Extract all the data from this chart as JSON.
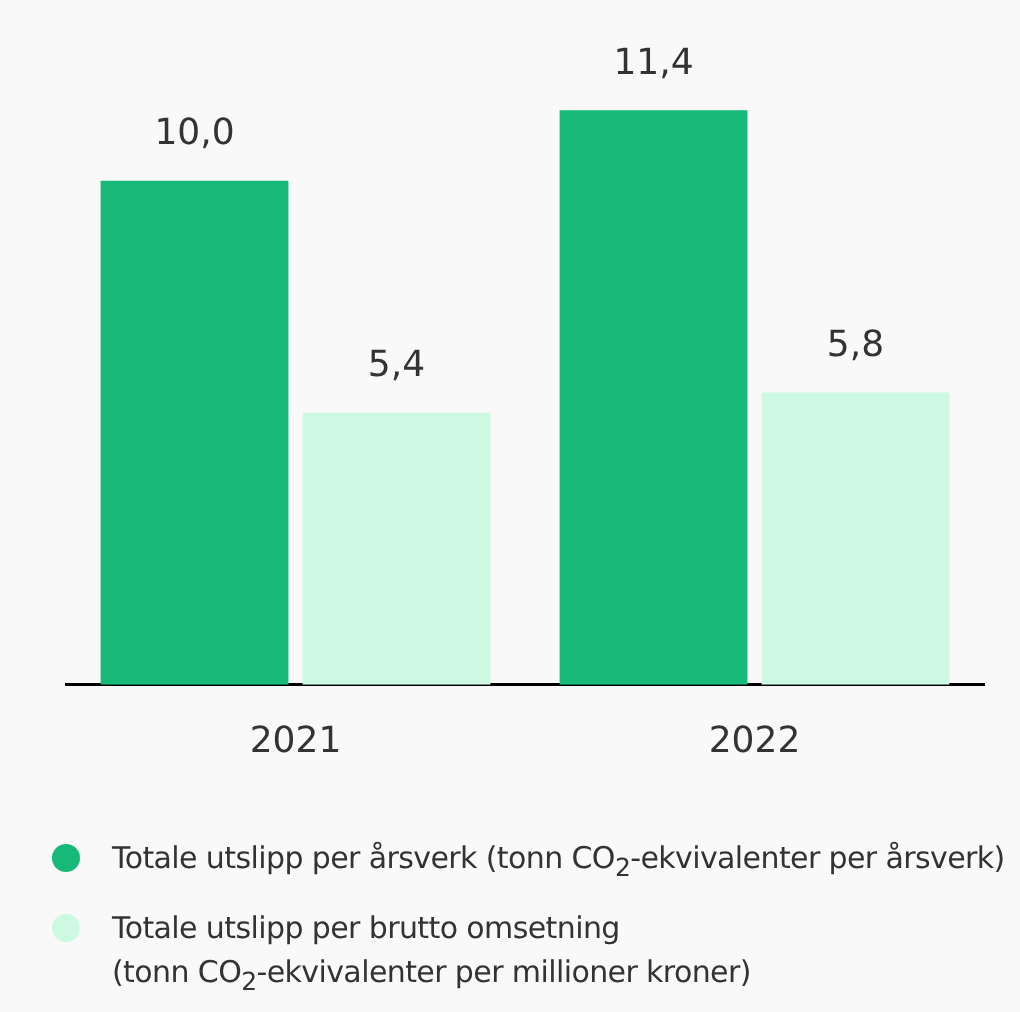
{
  "chart_data": {
    "type": "bar",
    "categories": [
      "2021",
      "2022"
    ],
    "series": [
      {
        "name": "Totale utslipp per årsverk (tonn CO$_{2}$-ekvivalenter per årsverk)",
        "color": "#17b978",
        "values": [
          10.0,
          11.4
        ],
        "value_labels": [
          "10,0",
          "11,4"
        ]
      },
      {
        "name": "Totale utslipp per brutto omsetning\n(tonn CO$_{2}$-ekvivalenter per millioner kroner)",
        "color": "#cdf8e2",
        "values": [
          5.4,
          5.8
        ],
        "value_labels": [
          "5,4",
          "5,8"
        ]
      }
    ],
    "tick_labels": "x",
    "grid": false,
    "legend": "bottom"
  }
}
